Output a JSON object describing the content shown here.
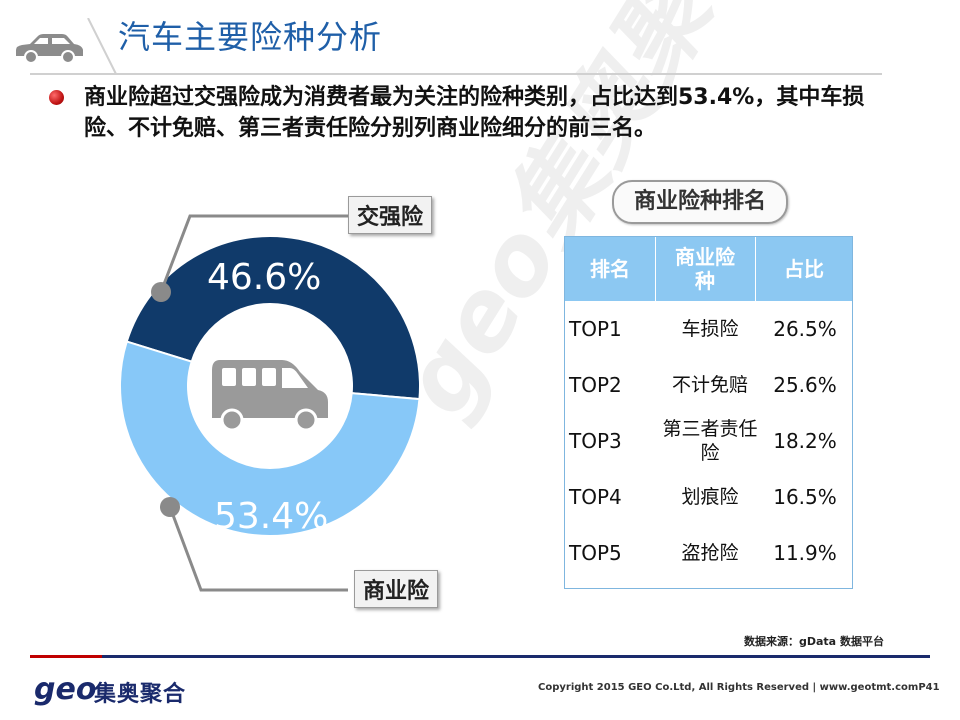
{
  "header": {
    "title": "汽车主要险种分析",
    "car_icon": "car-icon"
  },
  "bullet": {
    "text": "商业险超过交强险成为消费者最为关注的险种类别，占比达到53.4%，其中车损险、不计免赔、第三者责任险分别列商业险细分的前三名。"
  },
  "watermark": "geo集奥聚合",
  "chart_data": [
    {
      "type": "pie",
      "variant": "donut",
      "slices": [
        {
          "name": "交强险",
          "value": 46.6,
          "label": "46.6%",
          "color": "#103a6a"
        },
        {
          "name": "商业险",
          "value": 53.4,
          "label": "53.4%",
          "color": "#87c8f8"
        }
      ],
      "center_icon": "van-icon",
      "title": "",
      "legend": "callout boxes"
    },
    {
      "type": "table",
      "title": "商业险种排名",
      "columns": [
        "排名",
        "商业险种",
        "占比"
      ],
      "rows": [
        {
          "rank": "TOP1",
          "type": "车损险",
          "pct": "26.5%",
          "value": 26.5
        },
        {
          "rank": "TOP2",
          "type": "不计免赔",
          "pct": "25.6%",
          "value": 25.6
        },
        {
          "rank": "TOP3",
          "type": "第三者责任险",
          "pct": "18.2%",
          "value": 18.2
        },
        {
          "rank": "TOP4",
          "type": "划痕险",
          "pct": "16.5%",
          "value": 16.5
        },
        {
          "rank": "TOP5",
          "type": "盗抢险",
          "pct": "11.9%",
          "value": 11.9
        }
      ]
    }
  ],
  "footer": {
    "source": "数据来源：gData 数据平台",
    "logo_geo": "geo",
    "logo_cn": "集奥聚合",
    "copyright": "Copyright 2015 GEO Co.Ltd, All Rights Reserved  |  www.geotmt.com",
    "page": "P41",
    "accent_red": "#c00000",
    "accent_navy": "#1a2a6c"
  }
}
